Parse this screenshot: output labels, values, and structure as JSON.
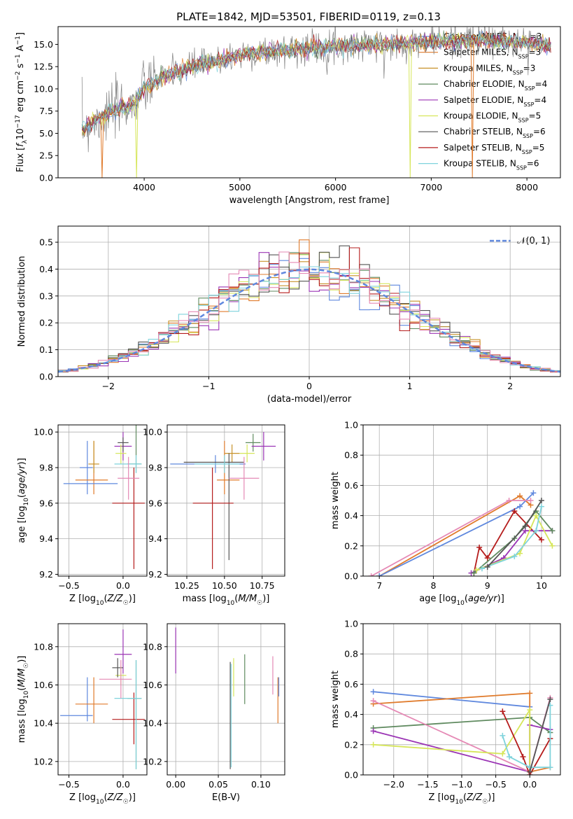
{
  "figure_title": "PLATE=1842, MJD=53501, FIBERID=0119, z=0.13",
  "colors": {
    "chabrier_miles": "#5f88de",
    "salpeter_miles": "#e07b2c",
    "kroupa_miles": "#c8922a",
    "chabrier_elodie": "#5f8a5f",
    "salpeter_elodie": "#9b35b5",
    "kroupa_elodie": "#d6e65a",
    "chabrier_stelib": "#555555",
    "salpeter_stelib": "#b51c1c",
    "kroupa_stelib": "#7fd3dc",
    "pink": "#e589b5",
    "normal": "#5f88de"
  },
  "legend_spectrum": [
    {
      "text": "Chabrier MILES, N",
      "sub": "SSP",
      "suffix": "=3"
    },
    {
      "text": "Salpeter MILES, N",
      "sub": "SSP",
      "suffix": "=3"
    },
    {
      "text": "Kroupa MILES, N",
      "sub": "SSP",
      "suffix": "=3"
    },
    {
      "text": "Chabrier ELODIE, N",
      "sub": "SSP",
      "suffix": "=4"
    },
    {
      "text": "Salpeter ELODIE, N",
      "sub": "SSP",
      "suffix": "=4"
    },
    {
      "text": "Kroupa ELODIE, N",
      "sub": "SSP",
      "suffix": "=5"
    },
    {
      "text": "Chabrier STELIB, N",
      "sub": "SSP",
      "suffix": "=6"
    },
    {
      "text": "Salpeter STELIB, N",
      "sub": "SSP",
      "suffix": "=5"
    },
    {
      "text": "Kroupa STELIB, N",
      "sub": "SSP",
      "suffix": "=6"
    }
  ],
  "legend_hist": "𝒩(0, 1)",
  "chart_data": [
    {
      "id": "spectrum",
      "type": "line",
      "xlabel": "wavelength [Angstrom, rest frame]",
      "ylabel": "Flux [f_λ 10^-17 erg cm^-2 s^-1 A^-1]",
      "xlim": [
        3100,
        8350
      ],
      "ylim": [
        0,
        17
      ],
      "xticks": [
        4000,
        5000,
        6000,
        7000,
        8000
      ],
      "yticks": [
        0.0,
        2.5,
        5.0,
        7.5,
        10.0,
        12.5,
        15.0
      ],
      "continuum": [
        [
          3350,
          5.5
        ],
        [
          3500,
          6.5
        ],
        [
          3700,
          7.5
        ],
        [
          3900,
          8.5
        ],
        [
          4000,
          10.0
        ],
        [
          4200,
          11.5
        ],
        [
          4500,
          12.5
        ],
        [
          4800,
          13.2
        ],
        [
          5000,
          13.8
        ],
        [
          5300,
          14.2
        ],
        [
          5600,
          14.5
        ],
        [
          6000,
          14.8
        ],
        [
          6500,
          15.0
        ],
        [
          7000,
          15.3
        ],
        [
          7500,
          15.5
        ],
        [
          8000,
          15.2
        ],
        [
          8250,
          14.8
        ]
      ],
      "dropouts": [
        [
          3560,
          0
        ],
        [
          3920,
          0
        ],
        [
          6780,
          0
        ],
        [
          7430,
          0
        ]
      ]
    },
    {
      "id": "residual_histogram",
      "type": "bar",
      "xlabel": "(data-model)/error",
      "ylabel": "Normed distribution",
      "xlim": [
        -2.5,
        2.5
      ],
      "ylim": [
        0,
        0.56
      ],
      "xticks": [
        -2,
        -1,
        0,
        1,
        2
      ],
      "yticks": [
        0.0,
        0.1,
        0.2,
        0.3,
        0.4,
        0.5
      ],
      "bin_width": 0.1,
      "normal_mean": 0,
      "normal_sigma": 1
    },
    {
      "id": "age_vs_Z",
      "type": "scatter",
      "xlabel": "Z [log10(Z/Z☉)]",
      "ylabel": "age [log10(age/yr)]",
      "xlim": [
        -0.6,
        0.22
      ],
      "ylim": [
        9.19,
        10.04
      ],
      "xticks": [
        -0.5,
        0.0
      ],
      "yticks": [
        9.2,
        9.4,
        9.6,
        9.8,
        10.0
      ],
      "points": [
        {
          "c": "chabrier_miles",
          "x": -0.33,
          "y": 9.8,
          "xe": [
            0.07,
            0.05
          ],
          "ye": [
            0.15,
            0.15
          ]
        },
        {
          "c": "salpeter_miles",
          "x": -0.27,
          "y": 9.73,
          "xe": [
            0.17,
            0.13
          ],
          "ye": [
            0.08,
            0.22
          ]
        },
        {
          "c": "kroupa_miles",
          "x": -0.27,
          "y": 9.82,
          "xe": [
            0.05,
            0.05
          ],
          "ye": [
            0.05,
            0.13
          ]
        },
        {
          "c": "chabrier_miles",
          "x": -0.3,
          "y": 9.71,
          "xe": [
            0.25,
            0.25
          ],
          "ye": [
            0.0,
            0.0
          ]
        },
        {
          "c": "chabrier_elodie",
          "x": 0.12,
          "y": 9.82,
          "xe": [
            0.08,
            0.05
          ],
          "ye": [
            0.05,
            0.5
          ]
        },
        {
          "c": "salpeter_elodie",
          "x": 0.0,
          "y": 9.92,
          "xe": [
            0.08,
            0.08
          ],
          "ye": [
            0.08,
            0.08
          ]
        },
        {
          "c": "kroupa_elodie",
          "x": -0.02,
          "y": 9.88,
          "xe": [
            0.05,
            0.05
          ],
          "ye": [
            0.06,
            0.05
          ]
        },
        {
          "c": "chabrier_stelib",
          "x": 0.0,
          "y": 9.94,
          "xe": [
            0.05,
            0.05
          ],
          "ye": [
            0.05,
            0.03
          ]
        },
        {
          "c": "salpeter_stelib",
          "x": 0.1,
          "y": 9.6,
          "xe": [
            0.2,
            0.1
          ],
          "ye": [
            0.37,
            0.2
          ]
        },
        {
          "c": "kroupa_stelib",
          "x": 0.12,
          "y": 9.82,
          "xe": [
            0.2,
            0.05
          ],
          "ye": [
            0.05,
            0.05
          ]
        },
        {
          "c": "pink",
          "x": 0.05,
          "y": 9.74,
          "xe": [
            0.1,
            0.1
          ],
          "ye": [
            0.12,
            0.12
          ]
        }
      ]
    },
    {
      "id": "age_vs_mass",
      "type": "scatter",
      "xlabel": "mass [log10(M/M☉)]",
      "ylabel": "",
      "xlim": [
        10.12,
        10.9
      ],
      "ylim": [
        9.19,
        10.04
      ],
      "xticks": [
        10.25,
        10.5,
        10.75
      ],
      "yticks": [
        9.2,
        9.4,
        9.6,
        9.8,
        10.0
      ],
      "points": [
        {
          "c": "chabrier_miles",
          "x": 10.44,
          "y": 9.82,
          "xe": [
            0.3,
            0.2
          ],
          "ye": [
            0.05,
            0.05
          ]
        },
        {
          "c": "salpeter_miles",
          "x": 10.5,
          "y": 9.73,
          "xe": [
            0.05,
            0.1
          ],
          "ye": [
            0.08,
            0.22
          ]
        },
        {
          "c": "kroupa_miles",
          "x": 10.55,
          "y": 9.88,
          "xe": [
            0.05,
            0.05
          ],
          "ye": [
            0.05,
            0.05
          ]
        },
        {
          "c": "chabrier_elodie",
          "x": 10.69,
          "y": 9.94,
          "xe": [
            0.05,
            0.05
          ],
          "ye": [
            0.05,
            0.05
          ]
        },
        {
          "c": "salpeter_elodie",
          "x": 10.76,
          "y": 9.92,
          "xe": [
            0.08,
            0.08
          ],
          "ye": [
            0.08,
            0.08
          ]
        },
        {
          "c": "kroupa_elodie",
          "x": 10.65,
          "y": 9.88,
          "xe": [
            0.05,
            0.05
          ],
          "ye": [
            0.05,
            0.05
          ]
        },
        {
          "c": "chabrier_stelib",
          "x": 10.53,
          "y": 9.83,
          "xe": [
            0.3,
            0.1
          ],
          "ye": [
            0.55,
            0.05
          ]
        },
        {
          "c": "salpeter_stelib",
          "x": 10.42,
          "y": 9.6,
          "xe": [
            0.13,
            0.14
          ],
          "ye": [
            0.37,
            0.2
          ]
        },
        {
          "c": "kroupa_stelib",
          "x": 10.5,
          "y": 9.82,
          "xe": [
            0.2,
            0.1
          ],
          "ye": [
            0.05,
            0.05
          ]
        },
        {
          "c": "pink",
          "x": 10.63,
          "y": 9.74,
          "xe": [
            0.1,
            0.1
          ],
          "ye": [
            0.12,
            0.12
          ]
        }
      ]
    },
    {
      "id": "massweight_vs_age",
      "type": "line",
      "xlabel": "age [log10(age/yr)]",
      "ylabel": "mass weight",
      "xlim": [
        6.7,
        10.35
      ],
      "ylim": [
        0,
        1
      ],
      "xticks": [
        7,
        8,
        9,
        10
      ],
      "yticks": [
        0.0,
        0.2,
        0.4,
        0.6,
        0.8,
        1.0
      ],
      "series": [
        {
          "c": "salpeter_miles",
          "x": [
            7.0,
            9.6,
            9.8
          ],
          "y": [
            0.0,
            0.53,
            0.47
          ]
        },
        {
          "c": "chabrier_miles",
          "x": [
            7.0,
            9.6,
            9.85
          ],
          "y": [
            0.0,
            0.46,
            0.55
          ]
        },
        {
          "c": "pink",
          "x": [
            6.85,
            9.4,
            9.8
          ],
          "y": [
            0.0,
            0.5,
            0.5
          ]
        },
        {
          "c": "salpeter_stelib",
          "x": [
            8.75,
            8.85,
            9.0,
            9.5,
            10.0
          ],
          "y": [
            0.02,
            0.19,
            0.12,
            0.43,
            0.24
          ]
        },
        {
          "c": "salpeter_elodie",
          "x": [
            8.7,
            9.3,
            9.7,
            10.2
          ],
          "y": [
            0.02,
            0.12,
            0.3,
            0.3
          ]
        },
        {
          "c": "chabrier_elodie",
          "x": [
            8.75,
            9.5,
            9.9,
            10.2
          ],
          "y": [
            0.02,
            0.25,
            0.43,
            0.3
          ]
        },
        {
          "c": "kroupa_elodie",
          "x": [
            8.8,
            9.6,
            9.9,
            10.2
          ],
          "y": [
            0.04,
            0.15,
            0.4,
            0.2
          ]
        },
        {
          "c": "kroupa_stelib",
          "x": [
            8.9,
            9.5,
            9.9,
            10.0
          ],
          "y": [
            0.05,
            0.13,
            0.3,
            0.46
          ]
        },
        {
          "c": "chabrier_stelib",
          "x": [
            9.0,
            9.7,
            10.0
          ],
          "y": [
            0.06,
            0.33,
            0.5
          ]
        }
      ]
    },
    {
      "id": "mass_vs_Z",
      "type": "scatter",
      "xlabel": "Z [log10(Z/Z☉)]",
      "ylabel": "mass [log10(M/M☉)]",
      "xlim": [
        -0.6,
        0.22
      ],
      "ylim": [
        10.13,
        10.92
      ],
      "xticks": [
        -0.5,
        0.0
      ],
      "yticks": [
        10.2,
        10.4,
        10.6,
        10.8
      ],
      "points": [
        {
          "c": "chabrier_miles",
          "x": -0.33,
          "y": 10.44,
          "xe": [
            0.25,
            0.05
          ],
          "ye": [
            0.03,
            0.2
          ]
        },
        {
          "c": "salpeter_miles",
          "x": -0.27,
          "y": 10.5,
          "xe": [
            0.17,
            0.13
          ],
          "ye": [
            0.1,
            0.14
          ]
        },
        {
          "c": "chabrier_elodie",
          "x": 0.12,
          "y": 10.53,
          "xe": [
            0.08,
            0.05
          ],
          "ye": [
            0.37,
            0.2
          ]
        },
        {
          "c": "salpeter_elodie",
          "x": 0.0,
          "y": 10.76,
          "xe": [
            0.08,
            0.08
          ],
          "ye": [
            0.1,
            0.13
          ]
        },
        {
          "c": "kroupa_elodie",
          "x": -0.02,
          "y": 10.65,
          "xe": [
            0.05,
            0.05
          ],
          "ye": [
            0.05,
            0.05
          ]
        },
        {
          "c": "chabrier_stelib",
          "x": -0.05,
          "y": 10.69,
          "xe": [
            0.05,
            0.05
          ],
          "ye": [
            0.05,
            0.05
          ]
        },
        {
          "c": "salpeter_stelib",
          "x": 0.1,
          "y": 10.42,
          "xe": [
            0.2,
            0.1
          ],
          "ye": [
            0.13,
            0.14
          ]
        },
        {
          "c": "kroupa_stelib",
          "x": 0.12,
          "y": 10.53,
          "xe": [
            0.2,
            0.05
          ],
          "ye": [
            0.37,
            0.2
          ]
        },
        {
          "c": "pink",
          "x": -0.02,
          "y": 10.63,
          "xe": [
            0.2,
            0.1
          ],
          "ye": [
            0.1,
            0.1
          ]
        }
      ]
    },
    {
      "id": "mass_vs_ebv",
      "type": "scatter",
      "xlabel": "E(B-V)",
      "ylabel": "",
      "xlim": [
        -0.01,
        0.128
      ],
      "ylim": [
        10.13,
        10.92
      ],
      "xticks": [
        0.0,
        0.05,
        0.1
      ],
      "yticks": [
        10.2,
        10.4,
        10.6,
        10.8
      ],
      "points": [
        {
          "c": "salpeter_elodie",
          "x": 0.0,
          "y": 10.78,
          "ye": [
            0.12,
            0.12
          ]
        },
        {
          "c": "chabrier_stelib",
          "x": 0.064,
          "y": 10.44,
          "ye": [
            0.28,
            0.28
          ]
        },
        {
          "c": "kroupa_stelib",
          "x": 0.065,
          "y": 10.44,
          "ye": [
            0.27,
            0.27
          ]
        },
        {
          "c": "kroupa_elodie",
          "x": 0.068,
          "y": 10.64,
          "ye": [
            0.1,
            0.1
          ]
        },
        {
          "c": "chabrier_elodie",
          "x": 0.081,
          "y": 10.63,
          "ye": [
            0.13,
            0.13
          ]
        },
        {
          "c": "pink",
          "x": 0.114,
          "y": 10.65,
          "ye": [
            0.1,
            0.1
          ]
        },
        {
          "c": "salpeter_miles",
          "x": 0.12,
          "y": 10.52,
          "ye": [
            0.12,
            0.12
          ]
        },
        {
          "c": "chabrier_miles",
          "x": 0.121,
          "y": 10.59,
          "ye": [
            0.05,
            0.05
          ]
        }
      ]
    },
    {
      "id": "massweight_vs_Z",
      "type": "line",
      "xlabel": "Z [log10(Z/Z☉)]",
      "ylabel": "mass weight",
      "xlim": [
        -2.45,
        0.45
      ],
      "ylim": [
        0,
        1
      ],
      "xticks": [
        -2.0,
        -1.5,
        -1.0,
        -0.5,
        0.0
      ],
      "yticks": [
        0.0,
        0.2,
        0.4,
        0.6,
        0.8,
        1.0
      ],
      "series": [
        {
          "c": "chabrier_miles",
          "x": [
            -2.3,
            0.0
          ],
          "y": [
            0.55,
            0.45
          ]
        },
        {
          "c": "salpeter_miles",
          "x": [
            -2.3,
            0.0,
            0.0,
            0.3
          ],
          "y": [
            0.47,
            0.54,
            0.02,
            0.05
          ]
        },
        {
          "c": "chabrier_elodie",
          "x": [
            -2.3,
            0.0,
            0.3
          ],
          "y": [
            0.31,
            0.38,
            0.28
          ]
        },
        {
          "c": "salpeter_elodie",
          "x": [
            -2.3,
            0.0,
            0.0,
            0.3
          ],
          "y": [
            0.29,
            0.02,
            0.33,
            0.3
          ]
        },
        {
          "c": "pink",
          "x": [
            -2.3,
            0.0,
            0.3
          ],
          "y": [
            0.49,
            0.02,
            0.51
          ]
        },
        {
          "c": "kroupa_elodie",
          "x": [
            -2.3,
            -0.4,
            0.0,
            0.0
          ],
          "y": [
            0.2,
            0.14,
            0.43,
            0.02
          ]
        },
        {
          "c": "salpeter_stelib",
          "x": [
            -0.4,
            -0.1,
            0.0,
            0.3
          ],
          "y": [
            0.42,
            0.12,
            0.0,
            0.24
          ]
        },
        {
          "c": "kroupa_stelib",
          "x": [
            -0.4,
            -0.3,
            0.0,
            0.3,
            0.3
          ],
          "y": [
            0.26,
            0.12,
            0.05,
            0.05,
            0.46
          ]
        },
        {
          "c": "chabrier_stelib",
          "x": [
            0.0,
            0.3
          ],
          "y": [
            0.02,
            0.5
          ]
        }
      ]
    }
  ]
}
